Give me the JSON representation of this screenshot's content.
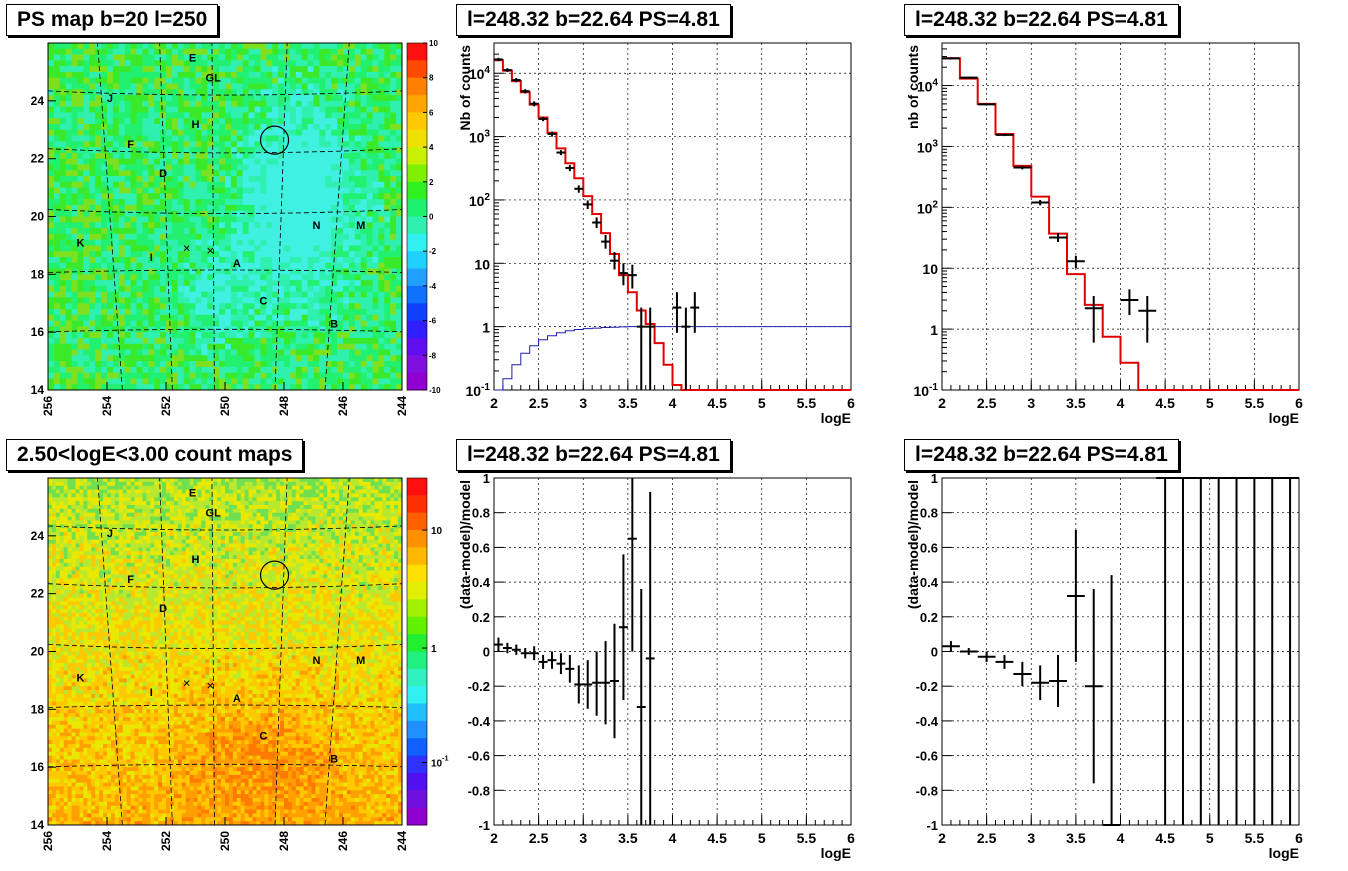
{
  "chart_data": [
    {
      "type": "heatmap",
      "title": "PS map b=20 l=250",
      "xlabel": "",
      "ylabel": "",
      "xlim": [
        256,
        244
      ],
      "ylim": [
        14,
        26
      ],
      "x_ticks": [
        "256",
        "254",
        "252",
        "250",
        "248",
        "246",
        "244"
      ],
      "y_ticks": [
        "14",
        "16",
        "18",
        "20",
        "22",
        "24"
      ],
      "colorbar": {
        "scale": "linear",
        "range": [
          -10,
          10
        ],
        "ticks": [
          "10",
          "8",
          "6",
          "4",
          "2",
          "0",
          "-2",
          "-4",
          "-6",
          "-8",
          "-10"
        ]
      },
      "sources": [
        {
          "label": "E",
          "l": 251.1,
          "b": 25.5
        },
        {
          "label": "GL",
          "l": 250.4,
          "b": 24.8
        },
        {
          "label": "J",
          "l": 253.9,
          "b": 24.1
        },
        {
          "label": "H",
          "l": 251.0,
          "b": 23.2
        },
        {
          "label": "F",
          "l": 253.2,
          "b": 22.5
        },
        {
          "label": "D",
          "l": 252.1,
          "b": 21.5
        },
        {
          "label": "N",
          "l": 246.9,
          "b": 19.7
        },
        {
          "label": "M",
          "l": 245.4,
          "b": 19.7
        },
        {
          "label": "K",
          "l": 254.9,
          "b": 19.1
        },
        {
          "label": "I",
          "l": 252.5,
          "b": 18.6
        },
        {
          "label": "A",
          "l": 249.6,
          "b": 18.4
        },
        {
          "label": "C",
          "l": 248.7,
          "b": 17.1
        },
        {
          "label": "B",
          "l": 246.3,
          "b": 16.3
        }
      ],
      "crosses": [
        {
          "l": 251.3,
          "b": 18.9
        },
        {
          "l": 250.5,
          "b": 18.8
        }
      ],
      "circle": {
        "l": 248.32,
        "b": 22.64
      }
    },
    {
      "type": "line",
      "title": "l=248.32 b=22.64 PS=4.81",
      "xlabel": "logE",
      "ylabel": "Nb of counts",
      "xlim": [
        2,
        6
      ],
      "ylim": [
        0.1,
        30000
      ],
      "yscale": "log",
      "grid": true,
      "x_ticks": [
        "2",
        "2.5",
        "3",
        "3.5",
        "4",
        "4.5",
        "5",
        "5.5",
        "6"
      ],
      "y_ticks": [
        {
          "v": 0.1,
          "base": "10",
          "exp": "-1"
        },
        {
          "v": 1,
          "base": "1",
          "exp": ""
        },
        {
          "v": 10,
          "base": "10",
          "exp": ""
        },
        {
          "v": 100,
          "base": "10",
          "exp": "2"
        },
        {
          "v": 1000,
          "base": "10",
          "exp": "3"
        },
        {
          "v": 10000,
          "base": "10",
          "exp": "4"
        }
      ],
      "bin_edges": [
        2.0,
        2.1,
        2.2,
        2.3,
        2.4,
        2.5,
        2.6,
        2.7,
        2.8,
        2.9,
        3.0,
        3.1,
        3.2,
        3.3,
        3.4,
        3.5,
        3.6,
        3.7,
        3.8,
        3.9,
        4.0,
        4.1,
        4.2,
        4.3,
        4.4,
        4.5,
        5.0,
        5.5,
        6.0
      ],
      "model": [
        16000,
        11000,
        7500,
        5000,
        3200,
        2000,
        1150,
        650,
        380,
        220,
        115,
        60,
        30,
        14,
        6.5,
        3.5,
        1.8,
        1.1,
        0.55,
        0.25,
        0.12,
        0.1,
        0.1,
        0.1,
        0.1,
        0.1,
        0.1,
        0.1
      ],
      "background": [
        0.1,
        0.15,
        0.25,
        0.38,
        0.5,
        0.62,
        0.72,
        0.8,
        0.86,
        0.9,
        0.93,
        0.95,
        0.97,
        0.98,
        0.99,
        1,
        1,
        1,
        1,
        1,
        1,
        1,
        1,
        1,
        1,
        1,
        1,
        1
      ],
      "data": [
        {
          "x": 2.05,
          "y": 16500,
          "lo": 15500,
          "hi": 17500
        },
        {
          "x": 2.15,
          "y": 11200,
          "lo": 10500,
          "hi": 12000
        },
        {
          "x": 2.25,
          "y": 7800,
          "lo": 7200,
          "hi": 8400
        },
        {
          "x": 2.35,
          "y": 5200,
          "lo": 4800,
          "hi": 5600
        },
        {
          "x": 2.45,
          "y": 3300,
          "lo": 3000,
          "hi": 3600
        },
        {
          "x": 2.55,
          "y": 1900,
          "lo": 1750,
          "hi": 2050
        },
        {
          "x": 2.65,
          "y": 1100,
          "lo": 1000,
          "hi": 1200
        },
        {
          "x": 2.75,
          "y": 560,
          "lo": 510,
          "hi": 610
        },
        {
          "x": 2.85,
          "y": 320,
          "lo": 285,
          "hi": 355
        },
        {
          "x": 2.95,
          "y": 150,
          "lo": 130,
          "hi": 170
        },
        {
          "x": 3.05,
          "y": 85,
          "lo": 72,
          "hi": 98
        },
        {
          "x": 3.15,
          "y": 44,
          "lo": 36,
          "hi": 53
        },
        {
          "x": 3.25,
          "y": 22,
          "lo": 17,
          "hi": 28
        },
        {
          "x": 3.35,
          "y": 11,
          "lo": 8,
          "hi": 15
        },
        {
          "x": 3.45,
          "y": 7,
          "lo": 4.5,
          "hi": 10
        },
        {
          "x": 3.55,
          "y": 6.5,
          "lo": 4,
          "hi": 9.5
        },
        {
          "x": 3.65,
          "y": 1,
          "lo": 0.1,
          "hi": 2
        },
        {
          "x": 3.75,
          "y": 1,
          "lo": 0.1,
          "hi": 2
        },
        {
          "x": 4.05,
          "y": 2,
          "lo": 0.8,
          "hi": 3.5
        },
        {
          "x": 4.15,
          "y": 1,
          "lo": 0.1,
          "hi": 2
        },
        {
          "x": 4.25,
          "y": 2,
          "lo": 0.8,
          "hi": 3.5
        }
      ]
    },
    {
      "type": "line",
      "title": "l=248.32 b=22.64 PS=4.81",
      "xlabel": "logE",
      "ylabel": "nb of counts",
      "xlim": [
        2,
        6
      ],
      "ylim": [
        0.1,
        50000
      ],
      "yscale": "log",
      "grid": true,
      "x_ticks": [
        "2",
        "2.5",
        "3",
        "3.5",
        "4",
        "4.5",
        "5",
        "5.5",
        "6"
      ],
      "y_ticks": [
        {
          "v": 0.1,
          "base": "10",
          "exp": "-1"
        },
        {
          "v": 1,
          "base": "1",
          "exp": ""
        },
        {
          "v": 10,
          "base": "10",
          "exp": ""
        },
        {
          "v": 100,
          "base": "10",
          "exp": "2"
        },
        {
          "v": 1000,
          "base": "10",
          "exp": "3"
        },
        {
          "v": 10000,
          "base": "10",
          "exp": "4"
        }
      ],
      "bin_edges": [
        2.0,
        2.2,
        2.4,
        2.6,
        2.8,
        3.0,
        3.2,
        3.4,
        3.6,
        3.8,
        4.0,
        4.2,
        4.5,
        5.0,
        5.5,
        6.0
      ],
      "model": [
        28000,
        13000,
        5000,
        1600,
        480,
        150,
        37,
        8,
        2.5,
        0.75,
        0.28,
        0.1,
        0.1,
        0.1,
        0.1
      ],
      "data": [
        {
          "x": 2.1,
          "y": 28000,
          "lo": 27000,
          "hi": 29000
        },
        {
          "x": 2.3,
          "y": 13500,
          "lo": 13000,
          "hi": 14000
        },
        {
          "x": 2.5,
          "y": 4900,
          "lo": 4700,
          "hi": 5100
        },
        {
          "x": 2.7,
          "y": 1550,
          "lo": 1480,
          "hi": 1620
        },
        {
          "x": 2.9,
          "y": 450,
          "lo": 420,
          "hi": 480
        },
        {
          "x": 3.1,
          "y": 120,
          "lo": 108,
          "hi": 132
        },
        {
          "x": 3.3,
          "y": 32,
          "lo": 27,
          "hi": 38
        },
        {
          "x": 3.5,
          "y": 13,
          "lo": 10,
          "hi": 16
        },
        {
          "x": 3.7,
          "y": 2.2,
          "lo": 0.6,
          "hi": 3.5
        },
        {
          "x": 4.1,
          "y": 3,
          "lo": 1.7,
          "hi": 4.5
        },
        {
          "x": 4.3,
          "y": 2,
          "lo": 0.6,
          "hi": 3.5
        }
      ]
    },
    {
      "type": "heatmap",
      "title": "2.50<logE<3.00 count maps",
      "xlabel": "",
      "ylabel": "",
      "xlim": [
        256,
        244
      ],
      "ylim": [
        14,
        26
      ],
      "x_ticks": [
        "256",
        "254",
        "252",
        "250",
        "248",
        "246",
        "244"
      ],
      "y_ticks": [
        "14",
        "16",
        "18",
        "20",
        "22",
        "24"
      ],
      "colorbar": {
        "scale": "log",
        "ticks": [
          {
            "base": "10",
            "exp": ""
          },
          {
            "base": "1",
            "exp": ""
          },
          {
            "base": "10",
            "exp": "-1"
          }
        ]
      },
      "sources": [
        {
          "label": "E",
          "l": 251.1,
          "b": 25.5
        },
        {
          "label": "GL",
          "l": 250.4,
          "b": 24.8
        },
        {
          "label": "J",
          "l": 253.9,
          "b": 24.1
        },
        {
          "label": "H",
          "l": 251.0,
          "b": 23.2
        },
        {
          "label": "F",
          "l": 253.2,
          "b": 22.5
        },
        {
          "label": "D",
          "l": 252.1,
          "b": 21.5
        },
        {
          "label": "N",
          "l": 246.9,
          "b": 19.7
        },
        {
          "label": "M",
          "l": 245.4,
          "b": 19.7
        },
        {
          "label": "K",
          "l": 254.9,
          "b": 19.1
        },
        {
          "label": "I",
          "l": 252.5,
          "b": 18.6
        },
        {
          "label": "A",
          "l": 249.6,
          "b": 18.4
        },
        {
          "label": "C",
          "l": 248.7,
          "b": 17.1
        },
        {
          "label": "B",
          "l": 246.3,
          "b": 16.3
        }
      ],
      "crosses": [
        {
          "l": 251.3,
          "b": 18.9
        },
        {
          "l": 250.5,
          "b": 18.8
        }
      ],
      "circle": {
        "l": 248.32,
        "b": 22.64
      }
    },
    {
      "type": "scatter",
      "title": "l=248.32 b=22.64 PS=4.81",
      "xlabel": "logE",
      "ylabel": "(data-model)/model",
      "xlim": [
        2,
        6
      ],
      "ylim": [
        -1,
        1
      ],
      "grid": true,
      "x_ticks": [
        "2",
        "2.5",
        "3",
        "3.5",
        "4",
        "4.5",
        "5",
        "5.5",
        "6"
      ],
      "y_ticks": [
        "-1",
        "-0.8",
        "-0.6",
        "-0.4",
        "-0.2",
        "0",
        "0.2",
        "0.4",
        "0.6",
        "0.8",
        "1"
      ],
      "xerr": 0.05,
      "data": [
        {
          "x": 2.05,
          "y": 0.04,
          "lo": 0.0,
          "hi": 0.08
        },
        {
          "x": 2.15,
          "y": 0.02,
          "lo": -0.01,
          "hi": 0.05
        },
        {
          "x": 2.25,
          "y": 0.01,
          "lo": -0.02,
          "hi": 0.04
        },
        {
          "x": 2.35,
          "y": -0.01,
          "lo": -0.04,
          "hi": 0.02
        },
        {
          "x": 2.45,
          "y": -0.01,
          "lo": -0.05,
          "hi": 0.03
        },
        {
          "x": 2.55,
          "y": -0.06,
          "lo": -0.1,
          "hi": -0.02
        },
        {
          "x": 2.65,
          "y": -0.05,
          "lo": -0.1,
          "hi": 0.0
        },
        {
          "x": 2.75,
          "y": -0.07,
          "lo": -0.13,
          "hi": -0.01
        },
        {
          "x": 2.85,
          "y": -0.1,
          "lo": -0.18,
          "hi": -0.02
        },
        {
          "x": 2.95,
          "y": -0.19,
          "lo": -0.3,
          "hi": -0.08
        },
        {
          "x": 3.05,
          "y": -0.19,
          "lo": -0.33,
          "hi": -0.05
        },
        {
          "x": 3.15,
          "y": -0.18,
          "lo": -0.37,
          "hi": 0.0
        },
        {
          "x": 3.25,
          "y": -0.18,
          "lo": -0.42,
          "hi": 0.06
        },
        {
          "x": 3.35,
          "y": -0.17,
          "lo": -0.5,
          "hi": 0.16
        },
        {
          "x": 3.45,
          "y": 0.14,
          "lo": -0.28,
          "hi": 0.56
        },
        {
          "x": 3.55,
          "y": 0.65,
          "lo": 0.0,
          "hi": 1.0
        },
        {
          "x": 3.65,
          "y": -0.32,
          "lo": -1.0,
          "hi": 0.36
        },
        {
          "x": 3.75,
          "y": -0.04,
          "lo": -1.0,
          "hi": 0.92
        }
      ]
    },
    {
      "type": "scatter",
      "title": "l=248.32 b=22.64 PS=4.81",
      "xlabel": "logE",
      "ylabel": "(data-model)/model",
      "xlim": [
        2,
        6
      ],
      "ylim": [
        -1,
        1
      ],
      "grid": true,
      "x_ticks": [
        "2",
        "2.5",
        "3",
        "3.5",
        "4",
        "4.5",
        "5",
        "5.5",
        "6"
      ],
      "y_ticks": [
        "-1",
        "-0.8",
        "-0.6",
        "-0.4",
        "-0.2",
        "0",
        "0.2",
        "0.4",
        "0.6",
        "0.8",
        "1"
      ],
      "xerr": 0.1,
      "data": [
        {
          "x": 2.1,
          "y": 0.03,
          "lo": 0.0,
          "hi": 0.06
        },
        {
          "x": 2.3,
          "y": 0.0,
          "lo": -0.02,
          "hi": 0.02
        },
        {
          "x": 2.5,
          "y": -0.03,
          "lo": -0.06,
          "hi": 0.0
        },
        {
          "x": 2.7,
          "y": -0.06,
          "lo": -0.1,
          "hi": -0.02
        },
        {
          "x": 2.9,
          "y": -0.13,
          "lo": -0.2,
          "hi": -0.06
        },
        {
          "x": 3.1,
          "y": -0.18,
          "lo": -0.28,
          "hi": -0.08
        },
        {
          "x": 3.3,
          "y": -0.17,
          "lo": -0.32,
          "hi": -0.02
        },
        {
          "x": 3.5,
          "y": 0.32,
          "lo": -0.06,
          "hi": 0.7
        },
        {
          "x": 3.7,
          "y": -0.2,
          "lo": -0.76,
          "hi": 0.36
        },
        {
          "x": 3.9,
          "y": -1.0,
          "lo": -1.0,
          "hi": 0.44
        },
        {
          "x": 4.5,
          "y": 1.0,
          "lo": -1.0,
          "hi": 1.0
        },
        {
          "x": 4.7,
          "y": 1.0,
          "lo": -1.0,
          "hi": 1.0
        },
        {
          "x": 4.9,
          "y": 1.0,
          "lo": -1.0,
          "hi": 1.0
        },
        {
          "x": 5.1,
          "y": 1.0,
          "lo": -1.0,
          "hi": 1.0
        },
        {
          "x": 5.3,
          "y": 1.0,
          "lo": -1.0,
          "hi": 1.0
        },
        {
          "x": 5.5,
          "y": 1.0,
          "lo": -1.0,
          "hi": 1.0
        },
        {
          "x": 5.7,
          "y": 1.0,
          "lo": -1.0,
          "hi": 1.0
        },
        {
          "x": 5.9,
          "y": 1.0,
          "lo": -1.0,
          "hi": 1.0
        }
      ]
    }
  ]
}
